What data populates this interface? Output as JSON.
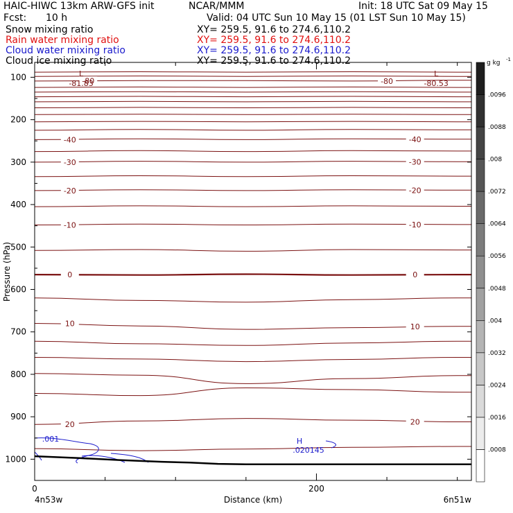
{
  "header": {
    "model": "HAIC-HIWC 13km ARW-GFS init",
    "org": "NCAR/MMM",
    "init": "Init: 18 UTC Sat 09 May 15",
    "fcst_label": "Fcst:",
    "fcst_value": "10 h",
    "valid": "Valid: 04 UTC Sun 10 May 15 (01 LST Sun 10 May 15)"
  },
  "legend": [
    {
      "name": "Snow mixing ratio",
      "xy": "XY= 259.5, 91.6 to 274.6,110.2",
      "color": "#000000"
    },
    {
      "name": "Rain water mixing ratio",
      "xy": "XY= 259.5, 91.6 to 274.6,110.2",
      "color": "#e01010"
    },
    {
      "name": "Cloud water mixing ratio",
      "xy": "XY= 259.5, 91.6 to 274.6,110.2",
      "color": "#1a1acc"
    },
    {
      "name": "Cloud ice mixing ratio",
      "xy": "XY= 259.5, 91.6 to 274.6,110.2",
      "color": "#000000"
    }
  ],
  "chart_data": {
    "type": "line",
    "xlabel": "Distance (km)",
    "ylabel": "Pressure (hPa)",
    "xlim": [
      0,
      310
    ],
    "ylim": [
      1050,
      50
    ],
    "x_ticks": [
      "0",
      "200"
    ],
    "y_ticks": [
      "100",
      "200",
      "300",
      "400",
      "500",
      "600",
      "700",
      "800",
      "900",
      "1000"
    ],
    "x_endpoints": {
      "left": "4n53w",
      "right": "6n51w"
    },
    "colorbar": {
      "unit": "g kg",
      "unit_exp": "-1",
      "ticks": [
        ".0008",
        ".0016",
        ".0024",
        ".0032",
        ".004",
        ".0048",
        ".0056",
        ".0064",
        ".0072",
        ".008",
        ".0088",
        ".0096"
      ]
    },
    "temperature_contours": [
      {
        "label": "0",
        "y": [
          565,
          566,
          564,
          566,
          565
        ]
      },
      {
        "label": "-10",
        "y": [
          448,
          446,
          448,
          446,
          447
        ]
      },
      {
        "label": "-20",
        "y": [
          367,
          365,
          367,
          365,
          366
        ]
      },
      {
        "label": "-30",
        "y": [
          300,
          298,
          300,
          298,
          299
        ]
      },
      {
        "label": "-40",
        "y": [
          247,
          245,
          247,
          245,
          246
        ]
      },
      {
        "label": "-80",
        "y": [
          109,
          108,
          108,
          109,
          107
        ]
      },
      {
        "label": "10",
        "y": [
          680,
          686,
          694,
          690,
          687
        ]
      },
      {
        "label": "20",
        "y": [
          918,
          910,
          904,
          908,
          912
        ]
      }
    ],
    "contour_x": [
      0,
      75,
      150,
      225,
      300
    ],
    "extra_levels": [
      {
        "y": [
          975,
          980,
          976,
          972,
          970
        ]
      },
      {
        "y": [
          845,
          850,
          832,
          836,
          842
        ]
      },
      {
        "y": [
          798,
          802,
          822,
          810,
          803
        ]
      },
      {
        "y": [
          760,
          764,
          770,
          765,
          760
        ]
      },
      {
        "y": [
          722,
          728,
          732,
          726,
          722
        ]
      },
      {
        "y": [
          620,
          626,
          630,
          624,
          620
        ]
      },
      {
        "y": [
          508,
          506,
          510,
          506,
          507
        ]
      },
      {
        "y": [
          405,
          403,
          405,
          403,
          404
        ]
      },
      {
        "y": [
          334,
          332,
          334,
          332,
          333
        ]
      },
      {
        "y": [
          275,
          273,
          275,
          273,
          274
        ]
      },
      {
        "y": [
          225,
          223,
          225,
          223,
          224
        ]
      },
      {
        "y": [
          205,
          204,
          205,
          204,
          205
        ]
      },
      {
        "y": [
          188,
          187,
          188,
          187,
          188
        ]
      },
      {
        "y": [
          172,
          171,
          172,
          171,
          172
        ]
      },
      {
        "y": [
          158,
          157,
          158,
          157,
          158
        ]
      },
      {
        "y": [
          146,
          145,
          146,
          145,
          146
        ]
      },
      {
        "y": [
          135,
          134,
          135,
          134,
          135
        ]
      },
      {
        "y": [
          124,
          123,
          124,
          123,
          124
        ]
      },
      {
        "y": [
          98,
          97,
          98,
          97,
          98
        ]
      },
      {
        "y": [
          88,
          87,
          88,
          87,
          88
        ]
      }
    ],
    "minima": [
      {
        "symbol": "L",
        "value": "-81.83",
        "x": 33,
        "y": 104
      },
      {
        "symbol": "L",
        "value": "-80.53",
        "x": 285,
        "y": 104
      }
    ],
    "cloud_water": {
      "label": ".001",
      "max_symbol": "H",
      "max_value": ".020145",
      "max_x": 190,
      "max_y": 960
    },
    "terrain": {
      "x": [
        0,
        30,
        60,
        90,
        110,
        130,
        150,
        200,
        250,
        310
      ],
      "p": [
        993,
        997,
        1002,
        1006,
        1008,
        1011,
        1012,
        1012,
        1012,
        1012
      ]
    }
  }
}
